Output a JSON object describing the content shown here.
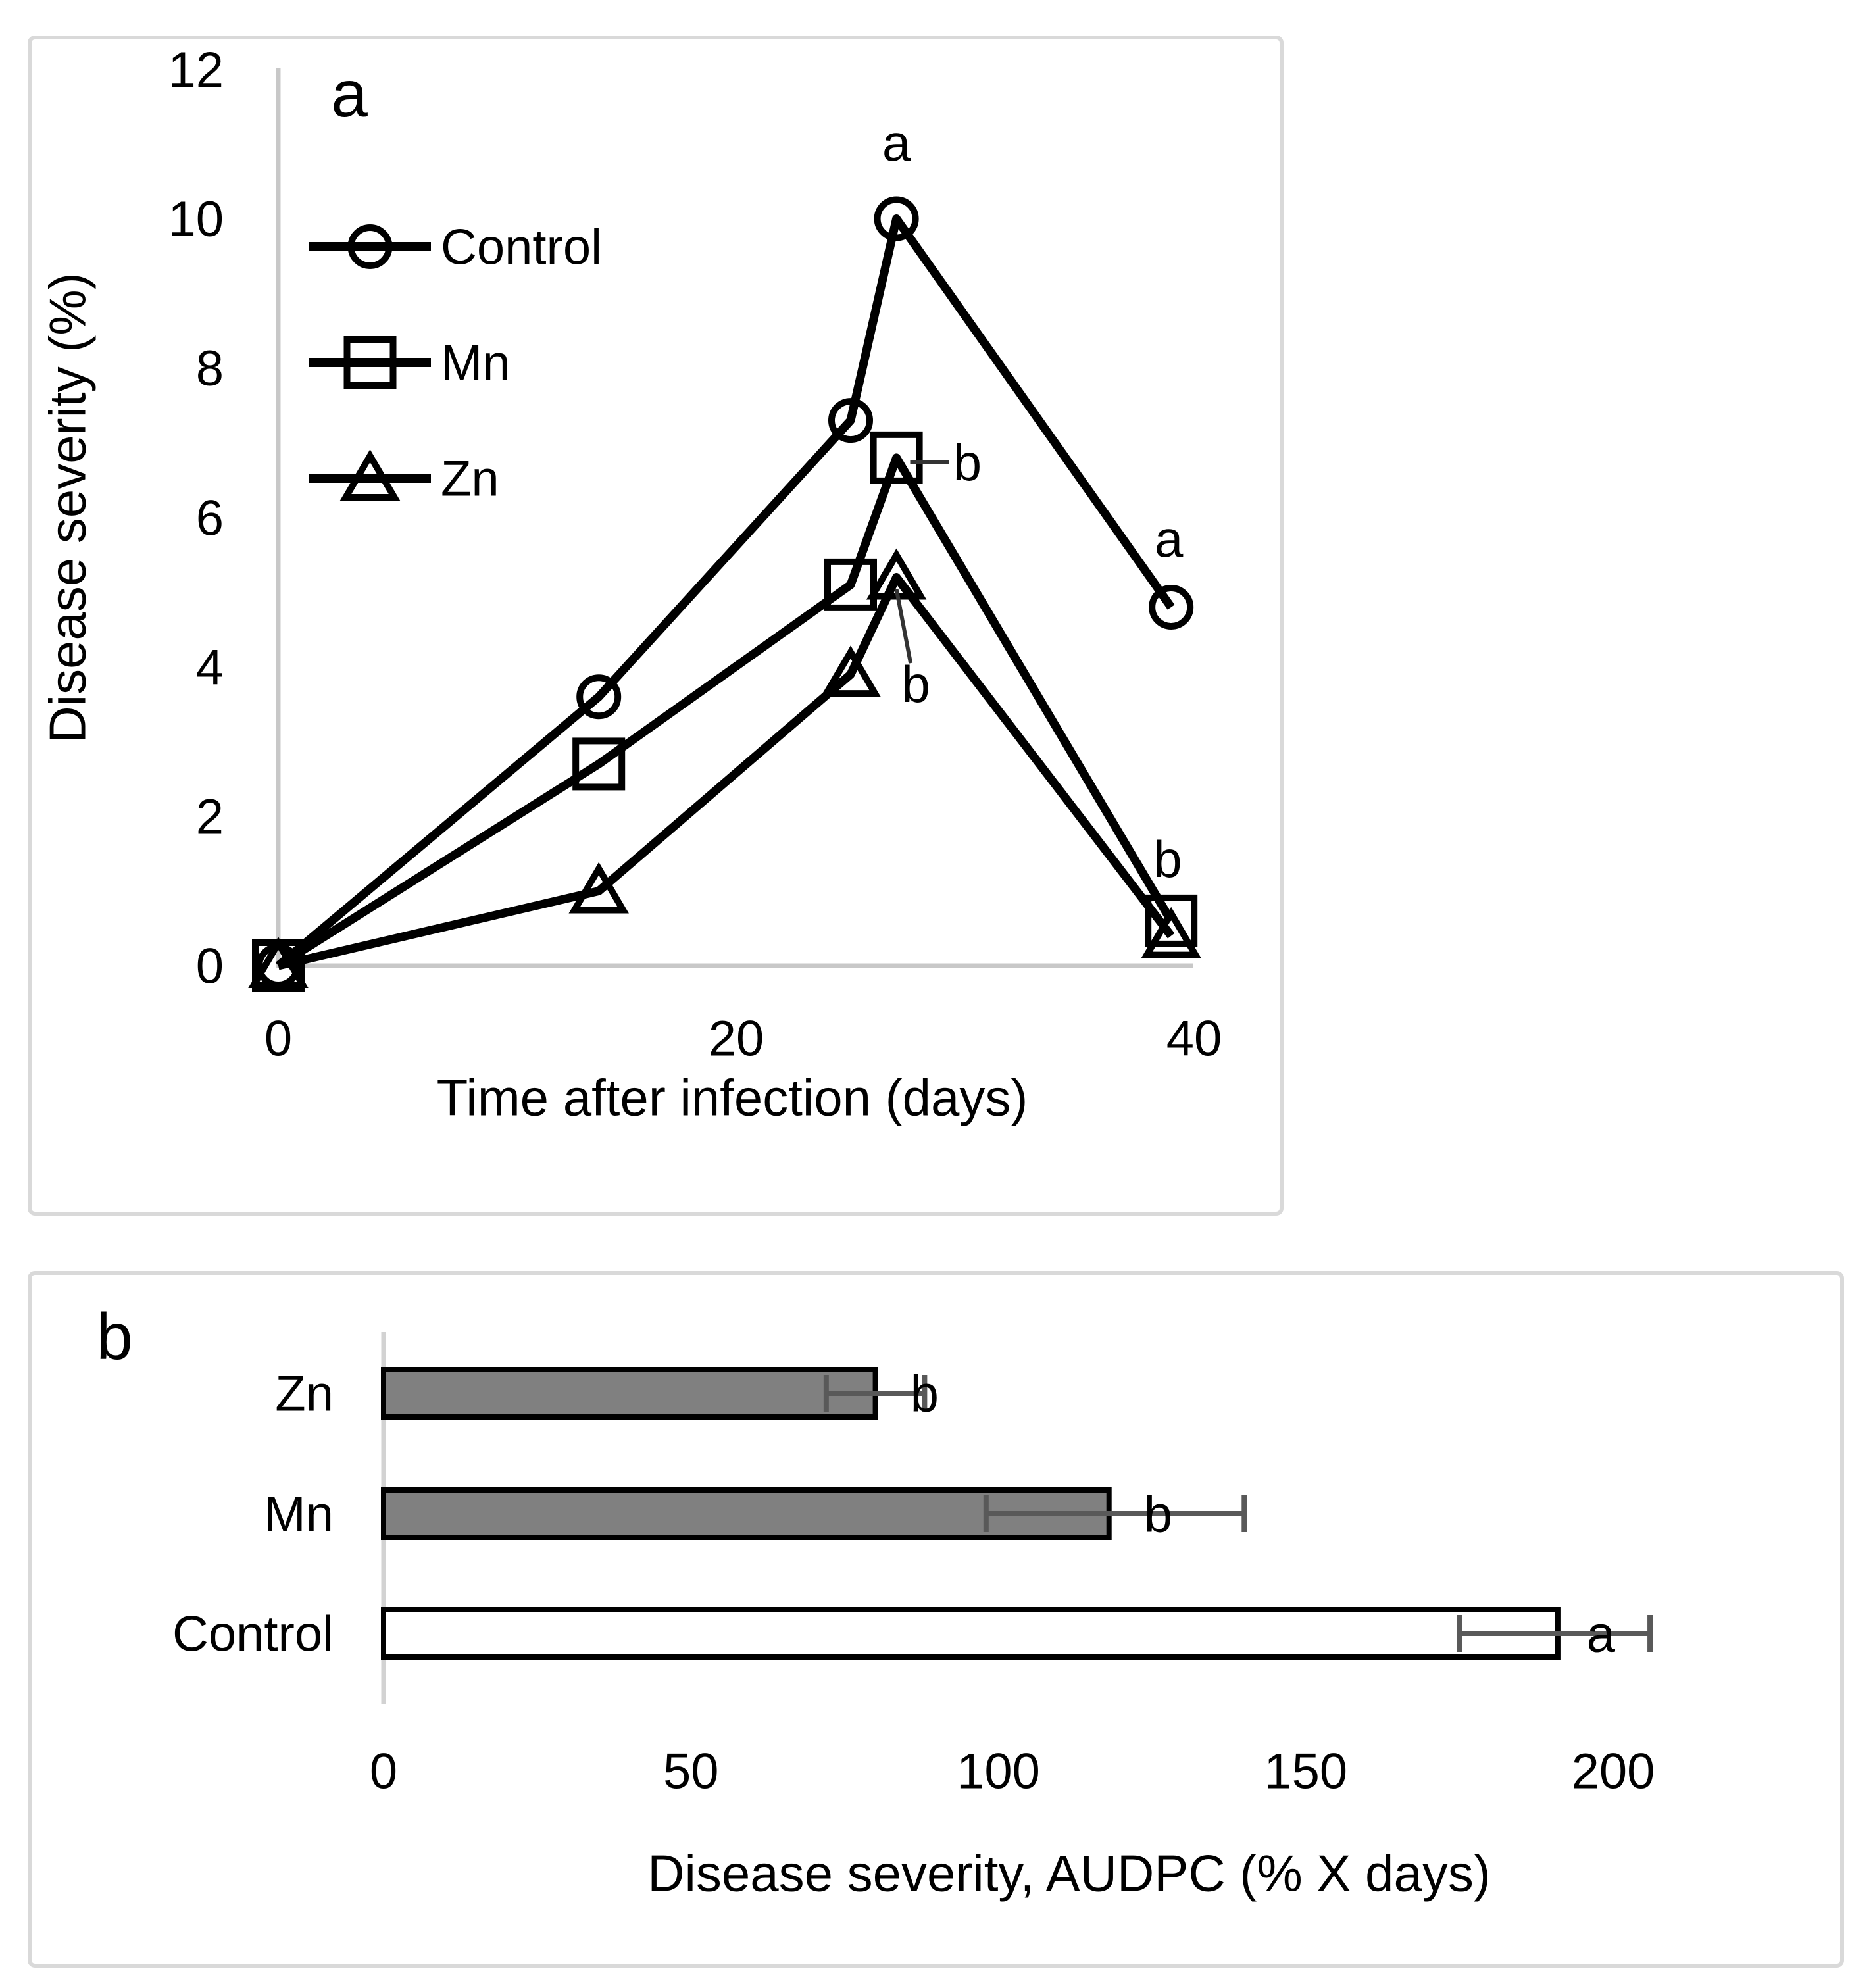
{
  "figure": {
    "panels": [
      {
        "label": "a"
      },
      {
        "label": "b"
      }
    ]
  },
  "chart_data": [
    {
      "type": "line",
      "panel_label": "a",
      "title": "",
      "xlabel": "Time after infection (days)",
      "ylabel": "Disease severity (%)",
      "x": [
        0,
        14,
        25,
        27,
        39
      ],
      "series": [
        {
          "name": "Control",
          "marker": "circle",
          "values": [
            0,
            3.6,
            7.3,
            10,
            4.8
          ]
        },
        {
          "name": "Mn",
          "marker": "square",
          "values": [
            0,
            2.7,
            5.1,
            6.8,
            0.6
          ]
        },
        {
          "name": "Zn",
          "marker": "triangle",
          "values": [
            0,
            1.0,
            3.9,
            5.2,
            0.4
          ]
        }
      ],
      "xlim": [
        0,
        40
      ],
      "ylim": [
        0,
        12
      ],
      "x_ticks": [
        0,
        20,
        40
      ],
      "y_ticks": [
        0,
        2,
        4,
        6,
        8,
        10,
        12
      ],
      "legend": [
        "Control",
        "Mn",
        "Zn"
      ],
      "legend_position": "inside-upper-left",
      "grid": false,
      "line_color": "#000000",
      "annotations": [
        {
          "text": "a",
          "x": 27.0,
          "y": 11.02
        },
        {
          "text": "b",
          "x": 30.1,
          "y": 6.74,
          "leader": [
            27.6,
            6.74,
            29.3,
            6.74
          ]
        },
        {
          "text": "b",
          "x": 27.85,
          "y": 3.77,
          "leader": [
            27.0,
            5.04,
            27.62,
            4.05
          ]
        },
        {
          "text": "a",
          "x": 38.9,
          "y": 5.72
        },
        {
          "text": "b",
          "x": 38.85,
          "y": 1.43
        }
      ]
    },
    {
      "type": "bar",
      "orientation": "horizontal",
      "panel_label": "b",
      "title": "",
      "xlabel": "Disease severity, AUDPC (% X days)",
      "categories": [
        "Zn",
        "Mn",
        "Control"
      ],
      "values": [
        80,
        118,
        191
      ],
      "errors_minus": [
        8,
        20,
        16
      ],
      "errors_plus": [
        8,
        22,
        15
      ],
      "sig_labels": [
        {
          "text": "b",
          "x": 88
        },
        {
          "text": "b",
          "x": 126
        },
        {
          "text": "a",
          "x": 198
        }
      ],
      "bar_fills": [
        "#808080",
        "#808080",
        "#ffffff"
      ],
      "bar_border": "#000000",
      "error_color": "#595959",
      "x_ticks": [
        0,
        50,
        100,
        150,
        200
      ],
      "xlim": [
        0,
        222
      ],
      "grid": false
    }
  ]
}
